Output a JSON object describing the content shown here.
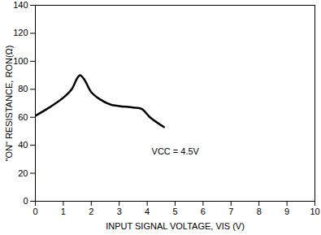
{
  "chart_data": {
    "type": "line",
    "x_label": "INPUT SIGNAL VOLTAGE, VIS (V)",
    "y_label": "\"ON\" RESISTANCE, RON(Ω)",
    "series": [
      {
        "name": "VCC = 4.5V",
        "color": "#000000",
        "x": [
          0,
          0.5,
          1,
          1.3,
          1.5,
          1.6,
          1.75,
          2,
          2.3,
          2.7,
          3,
          3.5,
          3.8,
          4.1,
          4.6
        ],
        "values": [
          61,
          67,
          74,
          80,
          88,
          90,
          87,
          78,
          73,
          69,
          68,
          67,
          66,
          60,
          53
        ]
      }
    ],
    "xlim": [
      0,
      10
    ],
    "xticks": [
      0,
      1,
      2,
      3,
      4,
      5,
      6,
      7,
      8,
      9,
      10
    ],
    "ylim": [
      0,
      140
    ],
    "yticks": [
      0,
      20,
      40,
      60,
      80,
      100,
      120,
      140
    ],
    "grid": false
  }
}
